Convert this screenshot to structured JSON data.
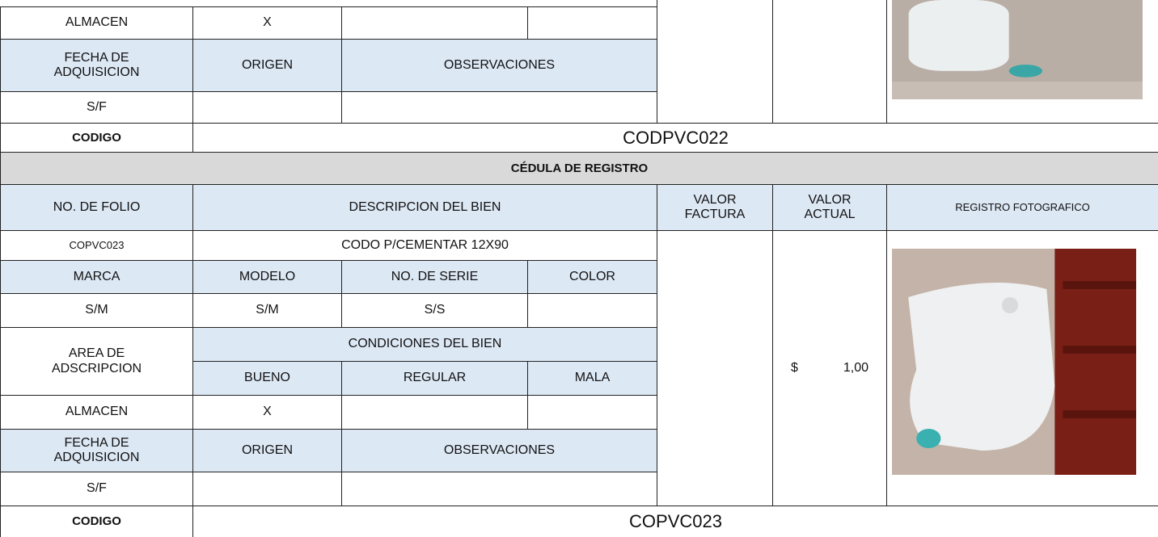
{
  "previous_record": {
    "area_value": "ALMACEN",
    "bueno_mark": "X",
    "fecha_header": "FECHA DE ADQUISICION",
    "origen_header": "ORIGEN",
    "observaciones_header": "OBSERVACIONES",
    "fecha_value": "S/F",
    "codigo_label": "CODIGO",
    "codigo": "CODPVC022"
  },
  "section_title": "CÉDULA DE REGISTRO",
  "headers": [
    "NO. DE FOLIO",
    "DESCRIPCION DEL BIEN",
    "VALOR FACTURA",
    "VALOR ACTUAL",
    "REGISTRO FOTOGRAFICO"
  ],
  "record": {
    "folio": "COPVC023",
    "descripcion": "CODO P/CEMENTAR 12X90",
    "detail_headers": [
      "MARCA",
      "MODELO",
      "NO. DE SERIE",
      "COLOR"
    ],
    "detail_values": [
      "S/M",
      "S/M",
      "S/S"
    ],
    "area_header": "AREA DE ADSCRIPCION",
    "condiciones_header": "CONDICIONES DEL BIEN",
    "condition_headers": [
      "BUENO",
      "REGULAR",
      "MALA"
    ],
    "area_value": "ALMACEN",
    "bueno_mark": "X",
    "fecha_header": "FECHA DE ADQUISICION",
    "origen_header": "ORIGEN",
    "observaciones_header": "OBSERVACIONES",
    "fecha_value": "S/F",
    "valor_actual_currency": "$",
    "valor_actual": "1,00",
    "codigo_label": "CODIGO",
    "codigo": "COPVC023"
  }
}
